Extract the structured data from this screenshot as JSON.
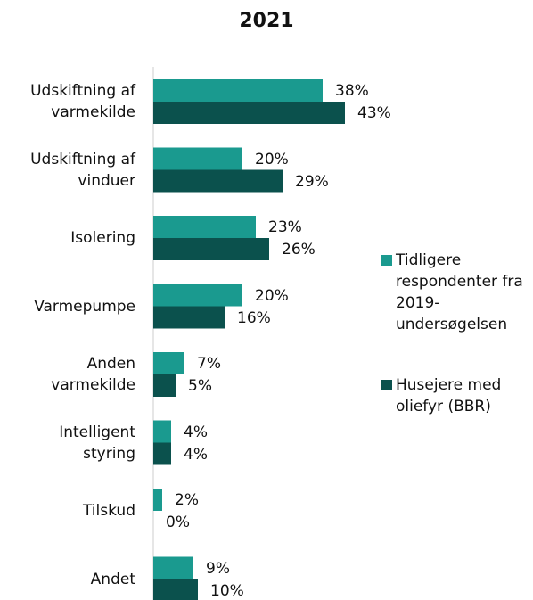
{
  "chart_data": {
    "type": "hbar",
    "title": "2021",
    "categories": [
      "Udskiftning af\nvarmekilde",
      "Udskiftning af\nvinduer",
      "Isolering",
      "Varmepumpe",
      "Anden\nvarmekilde",
      "Intelligent\nstyring",
      "Tilskud",
      "Andet"
    ],
    "series": [
      {
        "name": "Tidligere respondenter fra 2019-undersøgelsen",
        "color": "#1a9a8f",
        "values": [
          38,
          20,
          23,
          20,
          7,
          4,
          2,
          9
        ],
        "value_labels": [
          "38%",
          "20%",
          "23%",
          "20%",
          "7%",
          "4%",
          "2%",
          "9%"
        ]
      },
      {
        "name": "Husejere med oliefyr (BBR)",
        "color": "#0b514d",
        "values": [
          43,
          29,
          26,
          16,
          5,
          4,
          0,
          10
        ],
        "value_labels": [
          "43%",
          "29%",
          "26%",
          "16%",
          "5%",
          "4%",
          "0%",
          "10%"
        ]
      }
    ],
    "legend": "right"
  }
}
